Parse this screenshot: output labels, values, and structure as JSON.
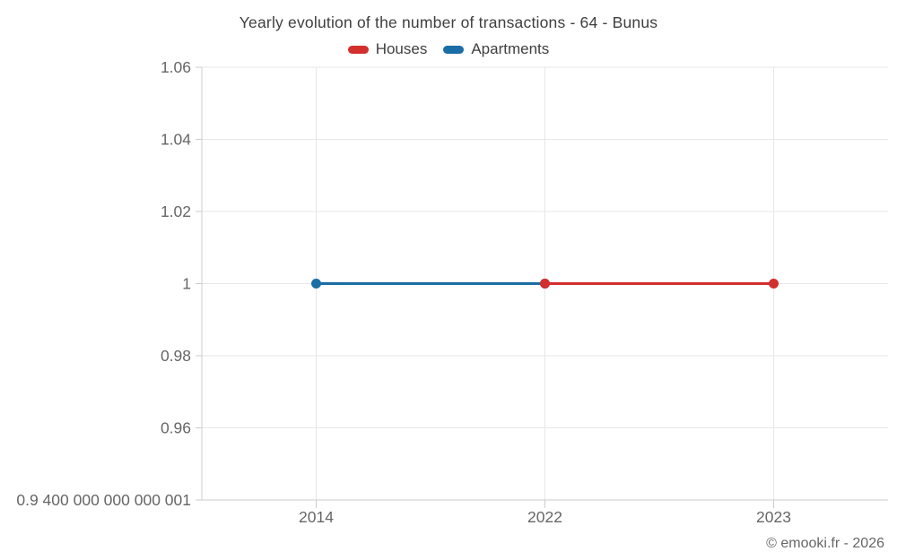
{
  "chart": {
    "title": "Yearly evolution of the number of transactions - 64 - Bunus",
    "attribution": "© emooki.fr - 2026"
  },
  "chart_data": {
    "type": "line",
    "title": "Yearly evolution of the number of transactions - 64 - Bunus",
    "categories": [
      "2014",
      "2022",
      "2023"
    ],
    "series": [
      {
        "name": "Houses",
        "color": "#d32f2f",
        "values": [
          null,
          1,
          1
        ]
      },
      {
        "name": "Apartments",
        "color": "#1a6da5",
        "values": [
          1,
          1,
          null
        ]
      }
    ],
    "ylim": [
      0.94,
      1.06
    ],
    "yticks": [
      {
        "value": 1.06,
        "label": "1.06"
      },
      {
        "value": 1.04,
        "label": "1.04"
      },
      {
        "value": 1.02,
        "label": "1.02"
      },
      {
        "value": 1.0,
        "label": "1"
      },
      {
        "value": 0.98,
        "label": "0.98"
      },
      {
        "value": 0.96,
        "label": "0.96"
      },
      {
        "value": 0.94,
        "label": "0.9 400 000 000 000 001"
      }
    ],
    "grid": true,
    "legend_position": "top",
    "colors": {
      "grid": "#e7e7e7",
      "axis": "#cccccc",
      "tick_label": "#666666",
      "text": "#3f3f3f"
    }
  }
}
